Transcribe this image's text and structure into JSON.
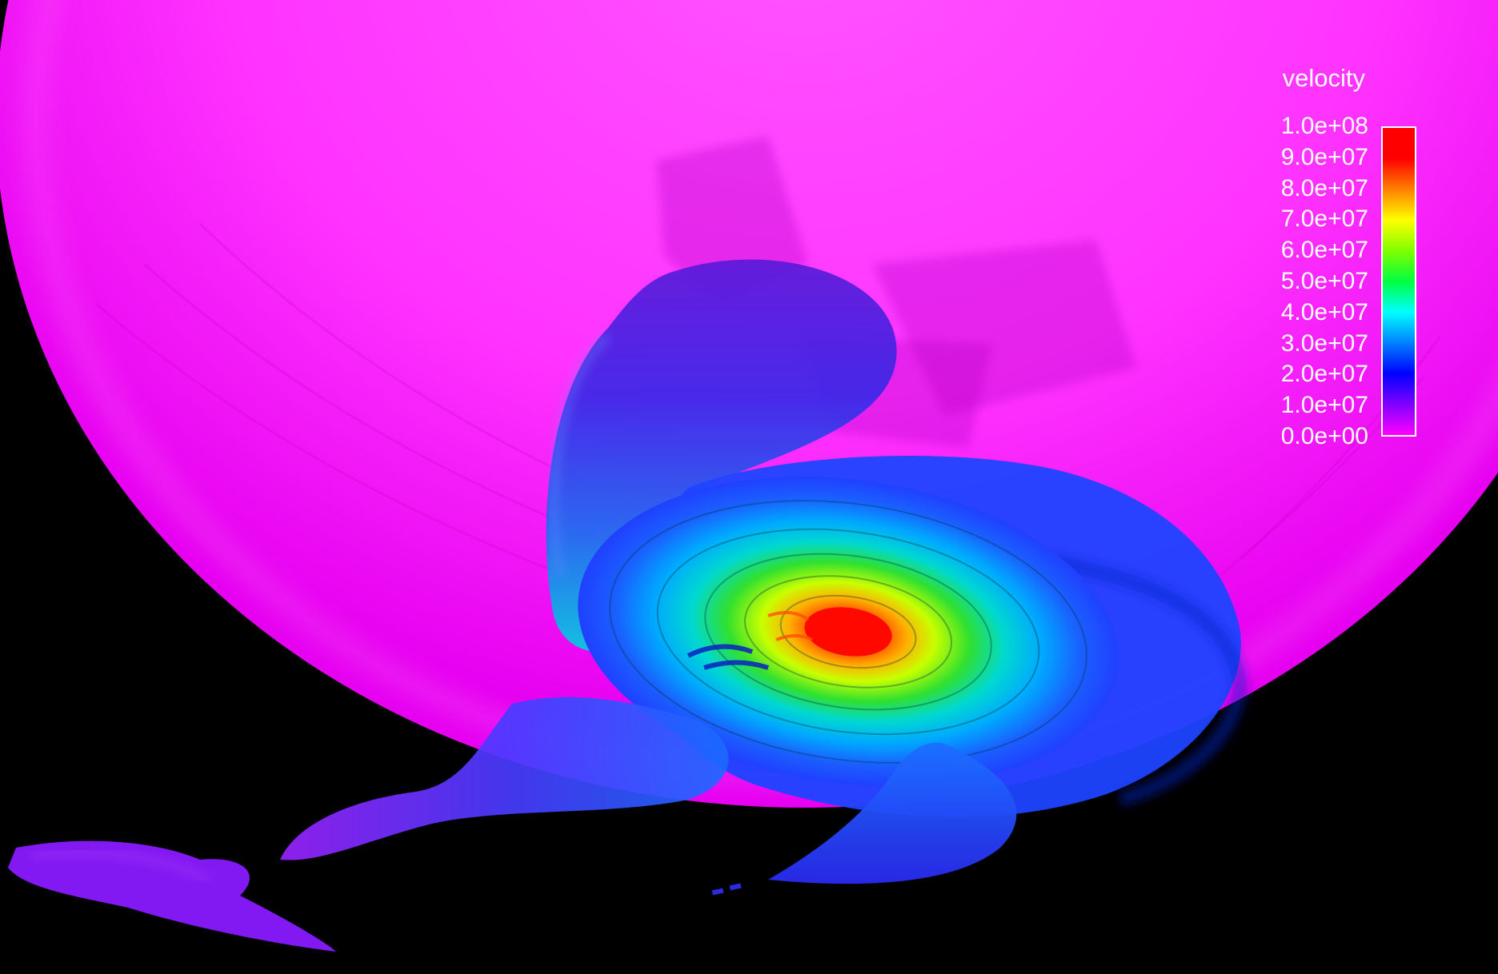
{
  "legend": {
    "title": "velocity",
    "ticks": [
      "1.0e+08",
      "9.0e+07",
      "8.0e+07",
      "7.0e+07",
      "6.0e+07",
      "5.0e+07",
      "4.0e+07",
      "3.0e+07",
      "2.0e+07",
      "1.0e+07",
      "0.0e+00"
    ],
    "colormap": [
      "#ff00ff",
      "#8000ff",
      "#0000ff",
      "#0080ff",
      "#00ffff",
      "#00ff40",
      "#80ff00",
      "#ffff00",
      "#ff8000",
      "#ff0000"
    ]
  },
  "colors": {
    "background": "#000000",
    "star": "#ff00ff",
    "stream": "#1a1aff",
    "disk_core": "#ff1000"
  }
}
